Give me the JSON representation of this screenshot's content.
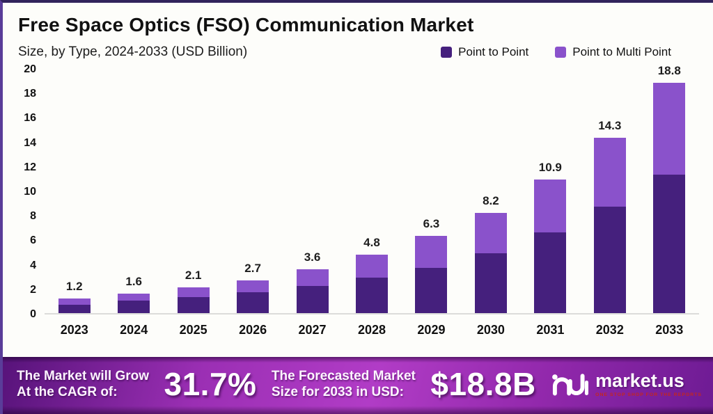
{
  "header": {
    "title": "Free Space Optics (FSO) Communication Market",
    "subtitle": "Size, by Type, 2024-2033 (USD Billion)"
  },
  "legend": [
    {
      "label": "Point to Point",
      "color": "#45207d"
    },
    {
      "label": "Point to Multi Point",
      "color": "#8a52cb"
    }
  ],
  "chart_data": {
    "type": "bar",
    "stacked": true,
    "title": "Free Space Optics (FSO) Communication Market",
    "subtitle": "Size, by Type, 2024-2033 (USD Billion)",
    "unit": "USD Billion",
    "categories": [
      "2023",
      "2024",
      "2025",
      "2026",
      "2027",
      "2028",
      "2029",
      "2030",
      "2031",
      "2032",
      "2033"
    ],
    "series": [
      {
        "name": "Point to Point",
        "color": "#45207d",
        "values": [
          0.7,
          1.0,
          1.3,
          1.7,
          2.2,
          2.9,
          3.7,
          4.9,
          6.6,
          8.7,
          11.3
        ]
      },
      {
        "name": "Point to Multi Point",
        "color": "#8a52cb",
        "values": [
          0.5,
          0.6,
          0.8,
          1.0,
          1.4,
          1.9,
          2.6,
          3.3,
          4.3,
          5.6,
          7.5
        ]
      }
    ],
    "totals": [
      "1.2",
      "1.6",
      "2.1",
      "2.7",
      "3.6",
      "4.8",
      "6.3",
      "8.2",
      "10.9",
      "14.3",
      "18.8"
    ],
    "ylim": [
      0,
      20
    ],
    "yticks": [
      0,
      2,
      4,
      6,
      8,
      10,
      12,
      14,
      16,
      18,
      20
    ],
    "grid": false,
    "legend_position": "top-right"
  },
  "footer": {
    "cagr_line1": "The Market will Grow",
    "cagr_line2": "At the CAGR of:",
    "cagr_value": "31.7%",
    "forecast_line1": "The Forecasted Market",
    "forecast_line2": "Size for 2033 in USD:",
    "forecast_value": "$18.8B",
    "brand_name": "market.us",
    "brand_tagline": "ONE STOP SHOP FOR THE REPORTS"
  }
}
